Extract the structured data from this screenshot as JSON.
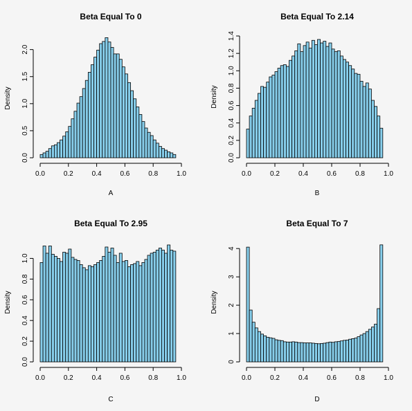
{
  "chart_data": [
    {
      "type": "bar",
      "title": "Beta Equal To 0",
      "xlabel": "A",
      "ylabel": "Density",
      "xlim": [
        0,
        1
      ],
      "ylim": [
        0,
        2.2
      ],
      "xticks": [
        "0.0",
        "0.2",
        "0.4",
        "0.6",
        "0.8",
        "1.0"
      ],
      "yticks": [
        "0.0",
        "0.5",
        "1.0",
        "1.5",
        "2.0"
      ],
      "bin_width": 0.02,
      "values": [
        0.06,
        0.09,
        0.12,
        0.17,
        0.22,
        0.24,
        0.28,
        0.33,
        0.4,
        0.48,
        0.58,
        0.72,
        0.86,
        1.01,
        1.13,
        1.28,
        1.43,
        1.58,
        1.72,
        1.86,
        1.99,
        2.11,
        2.15,
        2.22,
        2.14,
        2.04,
        1.92,
        1.92,
        1.82,
        1.68,
        1.55,
        1.39,
        1.24,
        1.09,
        0.94,
        0.8,
        0.67,
        0.55,
        0.47,
        0.41,
        0.33,
        0.27,
        0.21,
        0.17,
        0.14,
        0.11,
        0.09,
        0.06
      ]
    },
    {
      "type": "bar",
      "title": "Beta Equal To 2.14",
      "xlabel": "B",
      "ylabel": "Density",
      "xlim": [
        0,
        1
      ],
      "ylim": [
        0,
        1.4
      ],
      "xticks": [
        "0.0",
        "0.2",
        "0.4",
        "0.6",
        "0.8",
        "1.0"
      ],
      "yticks": [
        "0.0",
        "0.2",
        "0.4",
        "0.6",
        "0.8",
        "1.0",
        "1.2",
        "1.4"
      ],
      "bin_width": 0.02,
      "values": [
        0.33,
        0.48,
        0.57,
        0.66,
        0.74,
        0.82,
        0.81,
        0.87,
        0.93,
        0.95,
        0.99,
        1.03,
        1.06,
        1.07,
        1.05,
        1.12,
        1.17,
        1.23,
        1.31,
        1.22,
        1.29,
        1.33,
        1.26,
        1.35,
        1.3,
        1.36,
        1.32,
        1.34,
        1.28,
        1.32,
        1.25,
        1.22,
        1.23,
        1.17,
        1.13,
        1.1,
        1.06,
        1.02,
        0.97,
        0.96,
        0.88,
        0.82,
        0.86,
        0.79,
        0.66,
        0.59,
        0.48,
        0.34
      ]
    },
    {
      "type": "bar",
      "title": "Beta Equal To 2.95",
      "xlabel": "C",
      "ylabel": "Density",
      "xlim": [
        0,
        1
      ],
      "ylim": [
        0,
        1.15
      ],
      "xticks": [
        "0.0",
        "0.2",
        "0.4",
        "0.6",
        "0.8",
        "1.0"
      ],
      "yticks": [
        "0.0",
        "0.2",
        "0.4",
        "0.6",
        "0.8",
        "1.0"
      ],
      "bin_width": 0.02,
      "values": [
        0.96,
        1.12,
        1.05,
        1.12,
        1.04,
        1.02,
        1.0,
        0.97,
        1.06,
        1.05,
        1.09,
        1.01,
        0.99,
        0.98,
        0.94,
        0.91,
        0.89,
        0.93,
        0.92,
        0.94,
        0.96,
        0.98,
        1.02,
        1.11,
        1.06,
        1.1,
        1.03,
        0.96,
        1.05,
        0.97,
        0.98,
        0.92,
        0.94,
        0.95,
        0.97,
        0.93,
        0.96,
        0.99,
        1.03,
        1.05,
        1.06,
        1.08,
        1.1,
        1.08,
        1.05,
        1.13,
        1.08,
        1.07
      ]
    },
    {
      "type": "bar",
      "title": "Beta Equal To 7",
      "xlabel": "D",
      "ylabel": "Density",
      "xlim": [
        0,
        1
      ],
      "ylim": [
        0,
        4.2
      ],
      "xticks": [
        "0.0",
        "0.2",
        "0.4",
        "0.6",
        "0.8",
        "1.0"
      ],
      "yticks": [
        "0",
        "1",
        "2",
        "3",
        "4"
      ],
      "bin_width": 0.02,
      "values": [
        4.05,
        1.83,
        1.4,
        1.2,
        1.07,
        0.98,
        0.92,
        0.87,
        0.85,
        0.83,
        0.78,
        0.76,
        0.75,
        0.71,
        0.7,
        0.7,
        0.71,
        0.7,
        0.68,
        0.68,
        0.67,
        0.67,
        0.67,
        0.66,
        0.65,
        0.64,
        0.65,
        0.66,
        0.68,
        0.7,
        0.69,
        0.71,
        0.72,
        0.74,
        0.76,
        0.77,
        0.8,
        0.82,
        0.84,
        0.89,
        0.95,
        1.0,
        1.07,
        1.15,
        1.23,
        1.33,
        1.88,
        4.13
      ]
    }
  ]
}
